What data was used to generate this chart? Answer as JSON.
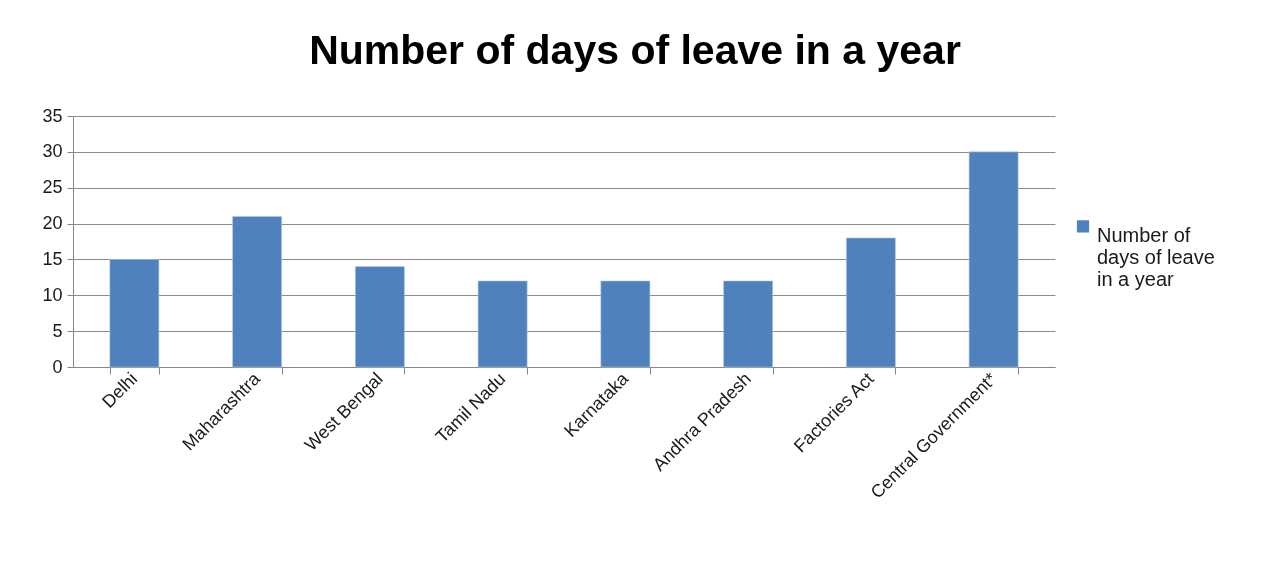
{
  "chart_data": {
    "type": "bar",
    "title": "Number of days of leave in a year",
    "categories": [
      "Delhi",
      "Maharashtra",
      "West Bengal",
      "Tamil Nadu",
      "Karnataka",
      "Andhra Pradesh",
      "Factories Act",
      "Central Government*"
    ],
    "series": [
      {
        "name": "Number of days of leave in a year",
        "color": "#4f81bd",
        "values": [
          15,
          21,
          14,
          12,
          12,
          12,
          18,
          30
        ]
      }
    ],
    "ylim": [
      0,
      35
    ],
    "yticks": [
      0,
      5,
      10,
      15,
      20,
      25,
      30,
      35
    ],
    "grid": "y",
    "legend": "right"
  }
}
